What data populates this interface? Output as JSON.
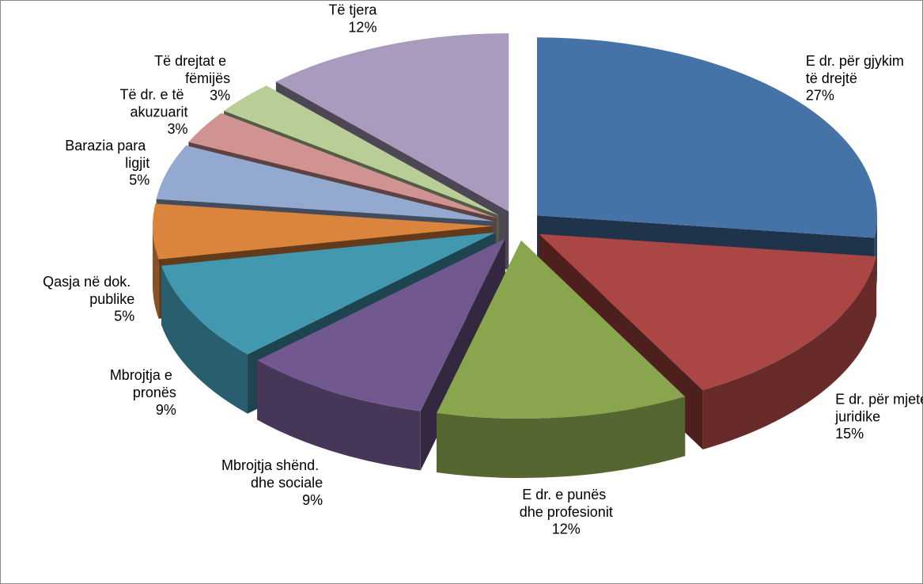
{
  "chart_data": {
    "type": "pie",
    "categories": [
      "E dr. për gjykim të drejtë",
      "E dr. për mjete juridike",
      "E dr. e punës dhe profesionit",
      "Mbrojtja shënd. dhe sociale",
      "Mbrojtja e pronës",
      "Qasja në dok. publike",
      "Barazia para ligjit",
      "Të dr. e të akuzuarit",
      "Të drejtat e fëmijës",
      "Të tjera"
    ],
    "values": [
      27,
      15,
      12,
      9,
      9,
      5,
      5,
      3,
      3,
      12
    ],
    "value_labels": [
      "27%",
      "15%",
      "12%",
      "9%",
      "9%",
      "5%",
      "5%",
      "3%",
      "3%",
      "12%"
    ],
    "colors": [
      "#4572a7",
      "#aa4643",
      "#89a54e",
      "#71588f",
      "#4198af",
      "#db843d",
      "#93a9cf",
      "#d19392",
      "#b9cd96",
      "#a99bbd"
    ]
  }
}
